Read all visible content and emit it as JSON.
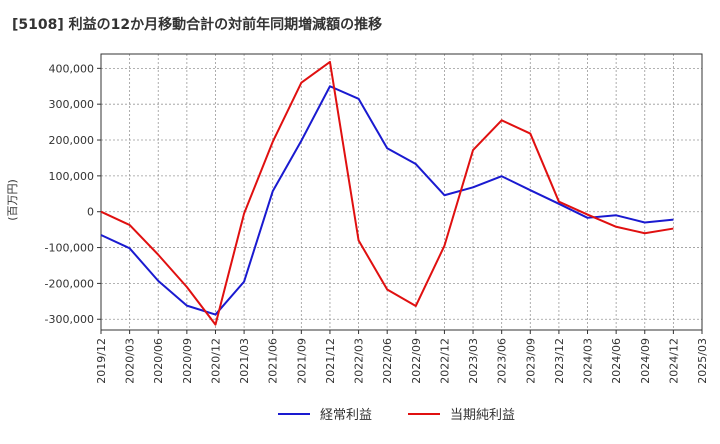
{
  "chart_data": {
    "type": "line",
    "title": "[5108]  利益の12か月移動合計の対前年同期増減額の推移",
    "ylabel": "(百万円)",
    "xlabel": "",
    "ylim": [
      -330000,
      440000
    ],
    "yticks": [
      400000,
      300000,
      200000,
      100000,
      0,
      -100000,
      -200000,
      -300000
    ],
    "ytick_labels": [
      "400,000",
      "300,000",
      "200,000",
      "100,000",
      "0",
      "-100,000",
      "-200,000",
      "-300,000"
    ],
    "categories": [
      "2019/12",
      "2020/03",
      "2020/06",
      "2020/09",
      "2020/12",
      "2021/03",
      "2021/06",
      "2021/09",
      "2021/12",
      "2022/03",
      "2022/06",
      "2022/09",
      "2022/12",
      "2023/03",
      "2023/06",
      "2023/09",
      "2023/12",
      "2024/03",
      "2024/06",
      "2024/09",
      "2024/12",
      "2025/03"
    ],
    "grid": true,
    "legend_position": "bottom",
    "series": [
      {
        "name": "経常利益",
        "color": "#1a1ad0",
        "values": [
          -65000,
          -102000,
          -193000,
          -262000,
          -287000,
          -195000,
          57000,
          198000,
          350000,
          315000,
          177000,
          133000,
          46000,
          68000,
          99000,
          60000,
          22000,
          -17000,
          -10000,
          -30000,
          -22000,
          null
        ]
      },
      {
        "name": "当期純利益",
        "color": "#e01010",
        "values": [
          0,
          -37000,
          -120000,
          -210000,
          -315000,
          -5000,
          195000,
          360000,
          418000,
          -80000,
          -217000,
          -263000,
          -95000,
          172000,
          255000,
          218000,
          28000,
          -8000,
          -42000,
          -60000,
          -47000,
          null
        ]
      }
    ]
  }
}
